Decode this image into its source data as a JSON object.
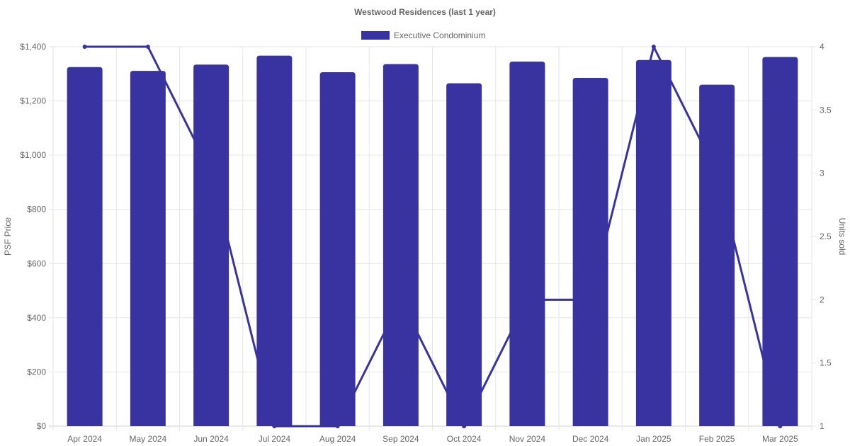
{
  "chart_data": {
    "type": "bar",
    "title": "Westwood Residences (last 1 year)",
    "categories": [
      "Apr 2024",
      "May 2024",
      "Jun 2024",
      "Jul 2024",
      "Aug 2024",
      "Sep 2024",
      "Oct 2024",
      "Nov 2024",
      "Dec 2024",
      "Jan 2025",
      "Feb 2025",
      "Mar 2025"
    ],
    "series": [
      {
        "name": "Executive Condominium",
        "type": "bar",
        "axis": "left",
        "color": "#3833a1",
        "values": [
          1325,
          1311,
          1334,
          1367,
          1306,
          1336,
          1265,
          1345,
          1285,
          1351,
          1260,
          1362
        ]
      },
      {
        "type": "line",
        "axis": "right",
        "color": "#3833a1",
        "values": [
          4,
          4,
          3,
          1,
          1,
          2,
          1,
          2,
          2,
          4,
          3,
          1
        ]
      }
    ],
    "ylabel": "PSF Price",
    "ylabel_right": "Units sold",
    "ylim": [
      0,
      1400
    ],
    "ylim_right": [
      1,
      4
    ],
    "yticks": [
      "$0",
      "$200",
      "$400",
      "$600",
      "$800",
      "$1,000",
      "$1,200",
      "$1,400"
    ],
    "yticks_right": [
      "1",
      "1.5",
      "2",
      "2.5",
      "3",
      "3.5",
      "4"
    ],
    "legend_position": "top-center",
    "grid": true
  }
}
